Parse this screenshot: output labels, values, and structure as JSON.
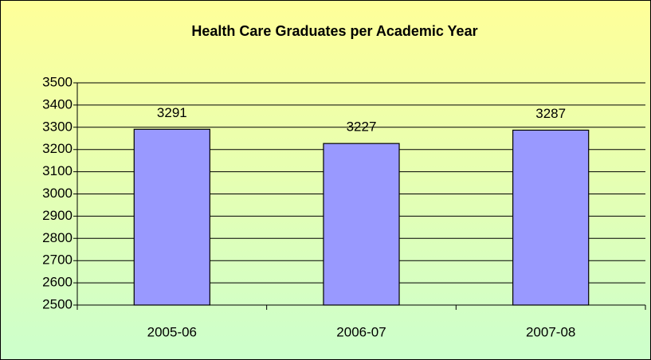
{
  "chart_data": {
    "type": "bar",
    "title": "Health Care Graduates per Academic Year",
    "categories": [
      "2005-06",
      "2006-07",
      "2007-08"
    ],
    "values": [
      3291,
      3227,
      3287
    ],
    "color": "#9999ff",
    "ylim": [
      2500,
      3500
    ],
    "yticks": [
      2500,
      2600,
      2700,
      2800,
      2900,
      3000,
      3100,
      3200,
      3300,
      3400,
      3500
    ],
    "grid": true
  }
}
